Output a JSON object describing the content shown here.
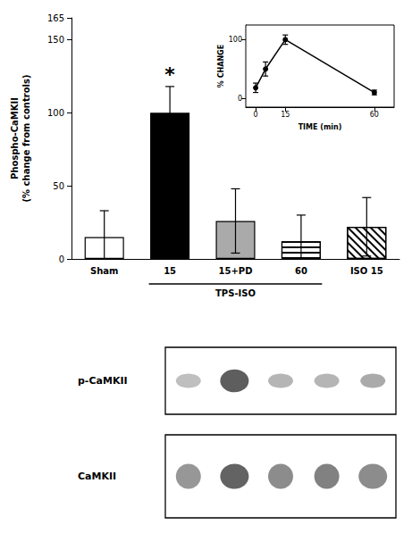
{
  "chart_data": [
    {
      "type": "bar",
      "categories": [
        "Sham",
        "15",
        "15+PD",
        "60",
        "ISO 15"
      ],
      "values": [
        15,
        100,
        26,
        12,
        22
      ],
      "errors": [
        18,
        18,
        22,
        18,
        20
      ],
      "colors": [
        "white",
        "black",
        "#aaaaaa",
        "white",
        "white"
      ],
      "ylabel": "Phospho-CaMKII\n(% change from controls)",
      "ylim": [
        0,
        165
      ],
      "yticks": [
        0,
        50,
        100,
        150
      ],
      "grid": false,
      "annotations": [
        {
          "text": "*",
          "category": "15"
        },
        {
          "text": "TPS-ISO",
          "categories": [
            "15",
            "15+PD",
            "60"
          ]
        }
      ]
    },
    {
      "type": "line",
      "x": [
        0,
        5,
        15,
        60
      ],
      "values": [
        18,
        50,
        100,
        10
      ],
      "errors": [
        8,
        12,
        8,
        4
      ],
      "color": "black",
      "marker": "circle",
      "xlabel": "TIME (min)",
      "ylabel": "% CHANGE",
      "xlim": [
        -5,
        70
      ],
      "xticks": [
        0,
        15,
        60
      ],
      "ylim": [
        -15,
        125
      ],
      "yticks": [
        0,
        100
      ],
      "grid": false
    },
    {
      "type": "blot",
      "annotations": [
        "p-CaMKII",
        "CaMKII"
      ]
    }
  ]
}
